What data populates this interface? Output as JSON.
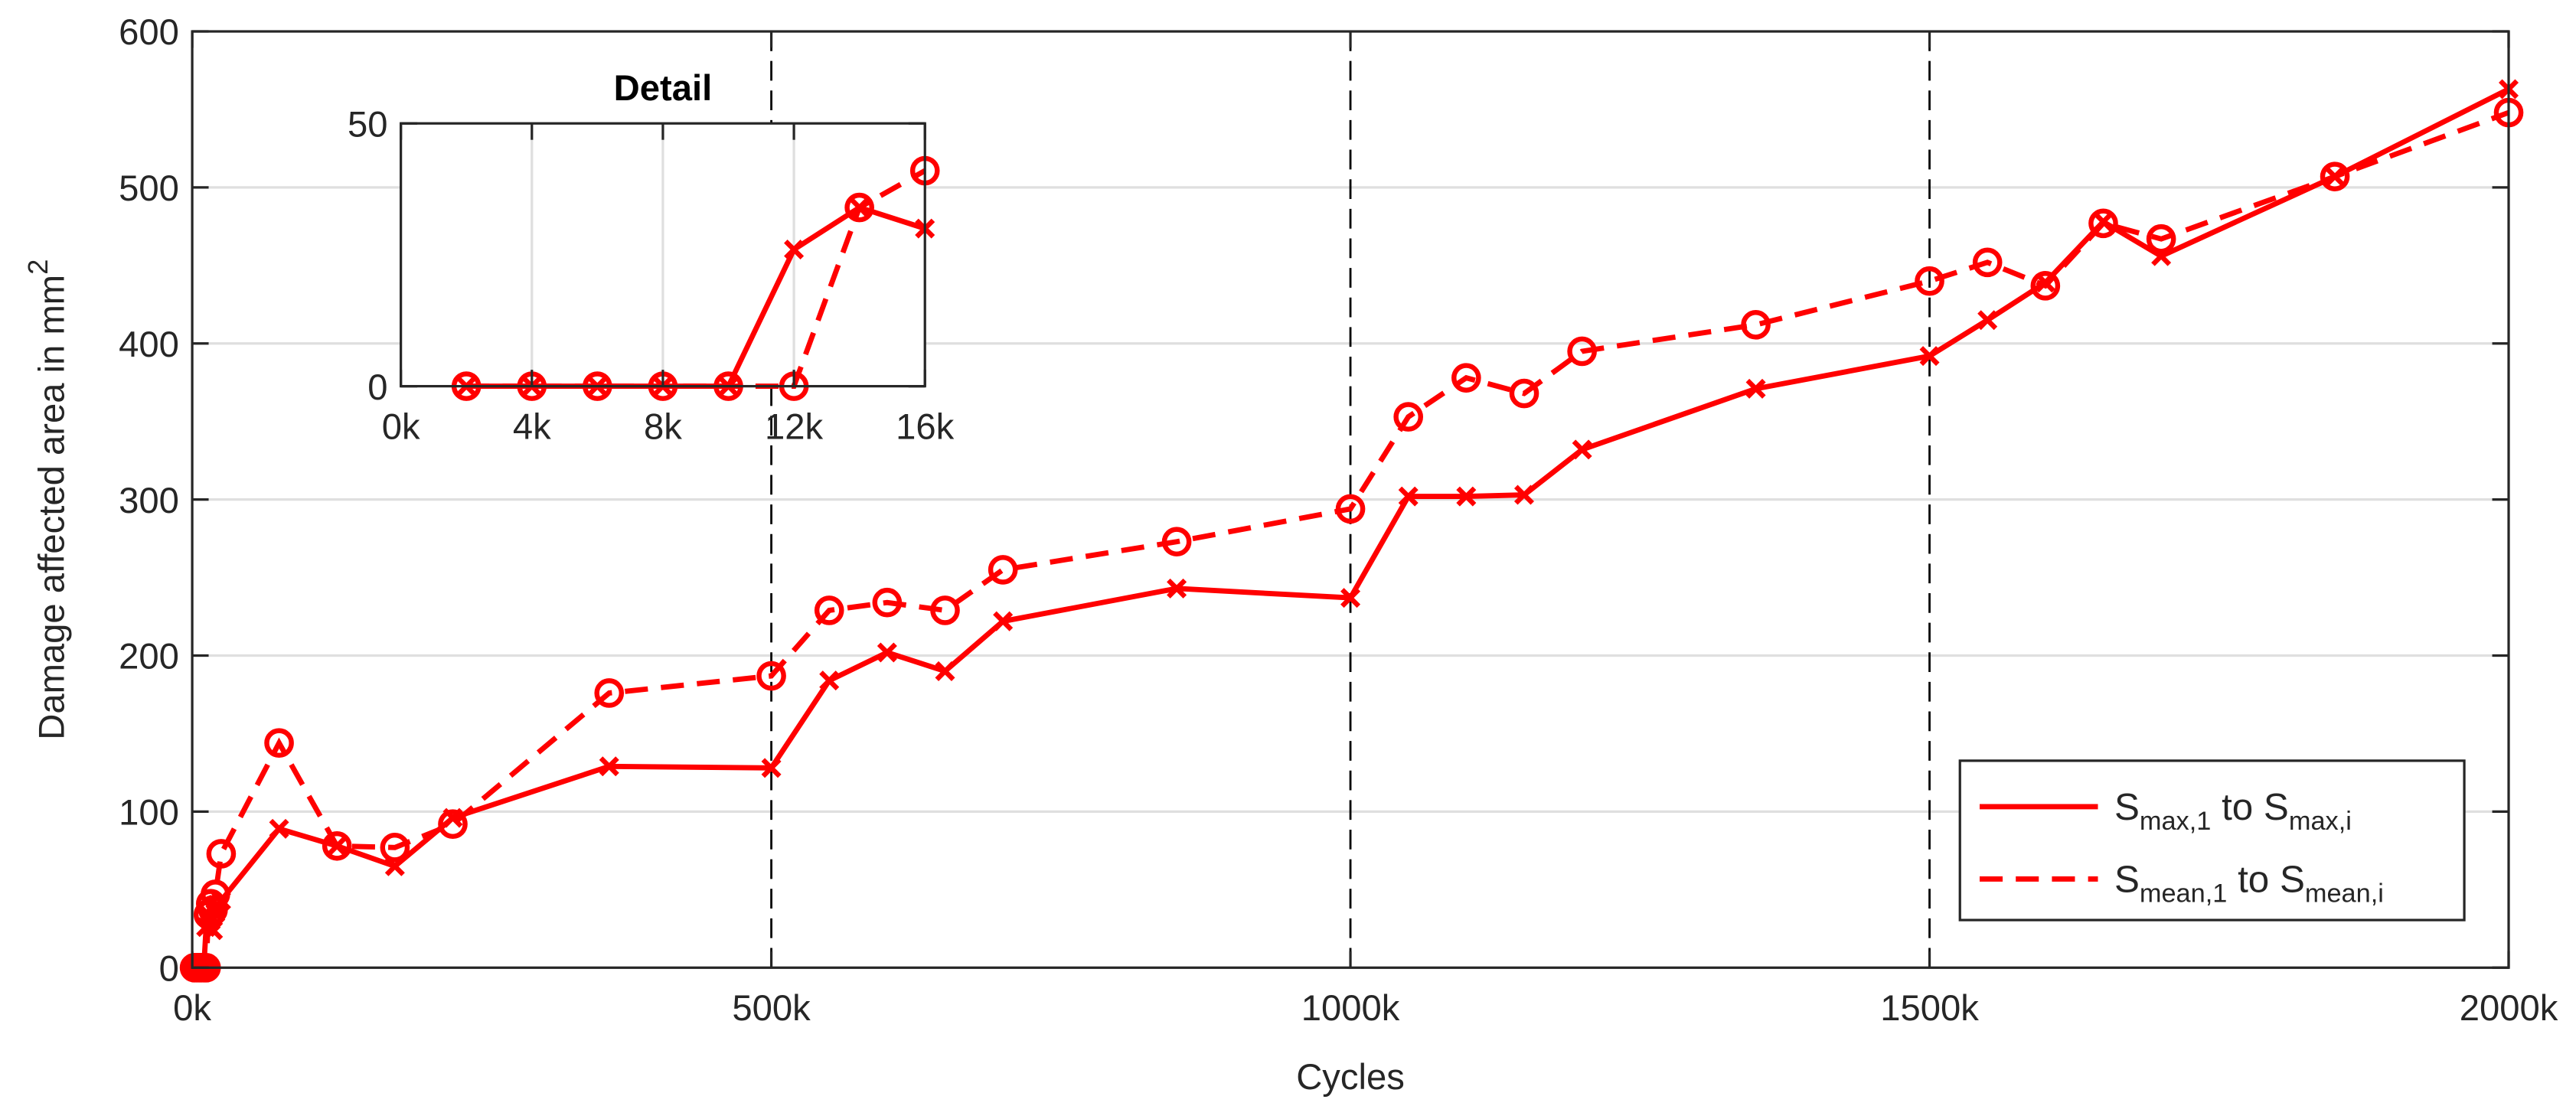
{
  "chart_data": [
    {
      "type": "line",
      "xlabel": "Cycles",
      "ylabel": "Damage affected area in mm",
      "ylabel_sup": "2",
      "xlim": [
        0,
        2000
      ],
      "xticks": [
        {
          "value": 0,
          "label": "0k"
        },
        {
          "value": 500,
          "label": "500k"
        },
        {
          "value": 1000,
          "label": "1000k"
        },
        {
          "value": 1500,
          "label": "1500k"
        },
        {
          "value": 2000,
          "label": "2000k"
        }
      ],
      "ylim": [
        0,
        600
      ],
      "yticks": [
        0,
        100,
        200,
        300,
        400,
        500,
        600
      ],
      "grid": "y",
      "vlines": [
        500,
        1000,
        1500
      ],
      "legend": "lower right",
      "x": [
        2,
        4,
        6,
        8,
        10,
        12,
        14,
        16,
        18,
        20,
        25,
        75,
        125,
        175,
        225,
        360,
        500,
        550,
        600,
        650,
        700,
        850,
        1000,
        1050,
        1100,
        1150,
        1200,
        1350,
        1500,
        1550,
        1600,
        1650,
        1700,
        1850,
        2000
      ],
      "series": [
        {
          "name": [
            "S",
            "max,1",
            " to S",
            "max,i"
          ],
          "color": "#ff0000",
          "dash": false,
          "marker": "x",
          "values": [
            0,
            0,
            0,
            0,
            0,
            26,
            34,
            30,
            24,
            35,
            43,
            89,
            78,
            65,
            96,
            129,
            128,
            184,
            202,
            190,
            222,
            243,
            237,
            302,
            302,
            303,
            332,
            371,
            392,
            415,
            439,
            478,
            456,
            507,
            563
          ]
        },
        {
          "name": [
            "S",
            "mean,1",
            " to S",
            "mean,i"
          ],
          "color": "#ff0000",
          "dash": true,
          "marker": "o",
          "values": [
            0,
            0,
            0,
            0,
            0,
            0,
            34,
            41,
            37,
            47,
            73,
            144,
            78,
            77,
            92,
            176,
            187,
            229,
            234,
            229,
            255,
            273,
            294,
            353,
            378,
            368,
            395,
            412,
            440,
            452,
            437,
            477,
            467,
            507,
            548
          ]
        }
      ]
    },
    {
      "type": "line",
      "title": "Detail",
      "xlim": [
        0,
        16
      ],
      "xticks": [
        {
          "value": 0,
          "label": "0k"
        },
        {
          "value": 4,
          "label": "4k"
        },
        {
          "value": 8,
          "label": "8k"
        },
        {
          "value": 12,
          "label": "12k"
        },
        {
          "value": 16,
          "label": "16k"
        }
      ],
      "ylim": [
        0,
        50
      ],
      "yticks": [
        0,
        50
      ],
      "grid": "x",
      "x": [
        2,
        4,
        6,
        8,
        10,
        12,
        14,
        16
      ],
      "series": [
        {
          "color": "#ff0000",
          "dash": false,
          "marker": "x",
          "values": [
            0,
            0,
            0,
            0,
            0,
            26,
            34,
            30
          ]
        },
        {
          "color": "#ff0000",
          "dash": true,
          "marker": "o",
          "values": [
            0,
            0,
            0,
            0,
            0,
            0,
            34,
            41
          ]
        }
      ]
    }
  ]
}
